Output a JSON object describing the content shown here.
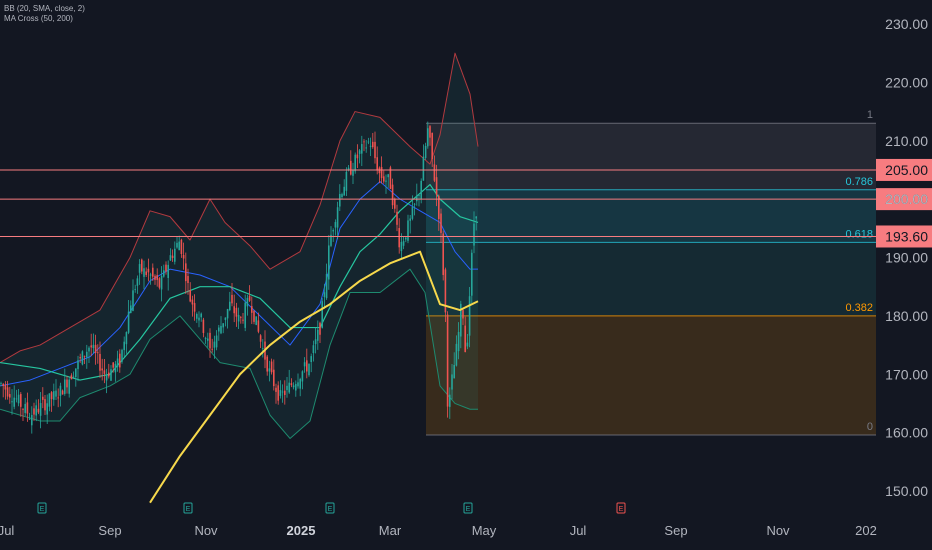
{
  "legend": {
    "bb": "BB (20, SMA, close, 2)",
    "ma": "MA Cross (50, 200)"
  },
  "chart_data": {
    "type": "candlestick",
    "y_axis": {
      "ticks": [
        230,
        220,
        210,
        200,
        190,
        180,
        170,
        160,
        150
      ],
      "tick_labels": [
        "230.00",
        "220.00",
        "210.00",
        "200.00",
        "190.00",
        "180.00",
        "170.00",
        "160.00",
        "150.00"
      ],
      "ylim": [
        147,
        233
      ]
    },
    "x_axis": {
      "labels": [
        "Jul",
        "Sep",
        "Nov",
        "2025",
        "Mar",
        "May",
        "Jul",
        "Sep",
        "Nov",
        "202"
      ],
      "bold_label": "2025"
    },
    "price_lines": [
      {
        "value": 205.0,
        "label": "205.00",
        "color": "#f77c80"
      },
      {
        "value": 200.0,
        "label": "200.00",
        "color": "#f77c80"
      },
      {
        "value": 193.6,
        "label": "193.60",
        "color": "#f77c80"
      }
    ],
    "fib_levels": [
      {
        "ratio": "1",
        "value": 213.0,
        "color": "#787b86"
      },
      {
        "ratio": "0.786",
        "value": 201.6,
        "color": "#26c6da"
      },
      {
        "ratio": "0.618",
        "value": 192.6,
        "color": "#26c6da"
      },
      {
        "ratio": "0.382",
        "value": 180.0,
        "color": "#ff9800"
      },
      {
        "ratio": "0",
        "value": 159.6,
        "color": "#787b86"
      }
    ],
    "earnings_markers": [
      "E",
      "E",
      "E",
      "E",
      "E"
    ],
    "colors": {
      "up": "#26a69a",
      "down": "#ef5350",
      "ma200": "#f7d94c",
      "ma50": "#26c6a0",
      "bb": "#ef5350",
      "bb_basis": "#2962ff"
    },
    "series_desc": [
      {
        "name": "price",
        "points": [
          [
            0,
            168.5
          ],
          [
            15,
            166
          ],
          [
            30,
            163
          ],
          [
            45,
            165
          ],
          [
            60,
            167
          ],
          [
            75,
            171
          ],
          [
            90,
            175
          ],
          [
            105,
            170
          ],
          [
            120,
            172
          ],
          [
            130,
            182
          ],
          [
            140,
            188
          ],
          [
            150,
            187
          ],
          [
            160,
            185
          ],
          [
            170,
            190
          ],
          [
            180,
            193
          ],
          [
            190,
            183
          ],
          [
            200,
            180
          ],
          [
            210,
            174
          ],
          [
            220,
            178
          ],
          [
            230,
            182
          ],
          [
            240,
            179
          ],
          [
            250,
            183
          ],
          [
            260,
            176
          ],
          [
            270,
            170
          ],
          [
            280,
            166
          ],
          [
            290,
            168
          ],
          [
            300,
            170
          ],
          [
            310,
            172
          ],
          [
            320,
            178
          ],
          [
            330,
            193
          ],
          [
            340,
            201
          ],
          [
            350,
            205
          ],
          [
            360,
            208
          ],
          [
            370,
            210
          ],
          [
            380,
            204
          ],
          [
            390,
            203
          ],
          [
            400,
            192
          ],
          [
            410,
            196
          ],
          [
            420,
            202
          ],
          [
            428,
            212
          ],
          [
            435,
            203
          ],
          [
            440,
            196
          ],
          [
            445,
            183
          ],
          [
            448,
            163
          ],
          [
            452,
            169
          ],
          [
            458,
            176
          ],
          [
            462,
            183
          ],
          [
            466,
            172
          ],
          [
            470,
            185
          ],
          [
            474,
            196
          ],
          [
            478,
            200
          ]
        ]
      },
      {
        "name": "MA200",
        "points": [
          [
            150,
            148
          ],
          [
            180,
            156
          ],
          [
            210,
            163
          ],
          [
            240,
            170
          ],
          [
            270,
            175
          ],
          [
            300,
            179
          ],
          [
            330,
            182
          ],
          [
            360,
            186
          ],
          [
            390,
            189
          ],
          [
            420,
            191
          ],
          [
            440,
            182
          ],
          [
            460,
            181
          ],
          [
            478,
            182.5
          ]
        ]
      },
      {
        "name": "MA50",
        "points": [
          [
            0,
            172
          ],
          [
            40,
            171
          ],
          [
            80,
            169
          ],
          [
            110,
            170
          ],
          [
            140,
            176
          ],
          [
            170,
            183
          ],
          [
            200,
            185
          ],
          [
            230,
            185
          ],
          [
            260,
            183
          ],
          [
            290,
            178
          ],
          [
            320,
            178
          ],
          [
            340,
            185
          ],
          [
            360,
            191
          ],
          [
            380,
            194
          ],
          [
            400,
            198
          ],
          [
            420,
            201
          ],
          [
            430,
            202.5
          ],
          [
            440,
            200
          ],
          [
            460,
            197
          ],
          [
            478,
            196
          ]
        ]
      },
      {
        "name": "BB upper",
        "points": [
          [
            0,
            172
          ],
          [
            20,
            174
          ],
          [
            40,
            175
          ],
          [
            70,
            178
          ],
          [
            100,
            181
          ],
          [
            130,
            190
          ],
          [
            150,
            198
          ],
          [
            170,
            197
          ],
          [
            190,
            193
          ],
          [
            210,
            200
          ],
          [
            225,
            196
          ],
          [
            250,
            192
          ],
          [
            270,
            188
          ],
          [
            300,
            191
          ],
          [
            320,
            199
          ],
          [
            340,
            210
          ],
          [
            355,
            215
          ],
          [
            380,
            214
          ],
          [
            410,
            209
          ],
          [
            430,
            206
          ],
          [
            440,
            211
          ],
          [
            455,
            225
          ],
          [
            470,
            218
          ],
          [
            478,
            209
          ]
        ]
      },
      {
        "name": "BB lower",
        "points": [
          [
            0,
            164
          ],
          [
            20,
            163
          ],
          [
            40,
            162
          ],
          [
            60,
            162
          ],
          [
            80,
            166
          ],
          [
            110,
            168
          ],
          [
            130,
            170
          ],
          [
            150,
            176
          ],
          [
            180,
            180
          ],
          [
            200,
            176
          ],
          [
            220,
            172
          ],
          [
            250,
            171
          ],
          [
            270,
            163
          ],
          [
            290,
            159
          ],
          [
            310,
            162
          ],
          [
            330,
            175
          ],
          [
            350,
            184
          ],
          [
            380,
            184
          ],
          [
            410,
            188
          ],
          [
            425,
            184
          ],
          [
            440,
            168
          ],
          [
            455,
            165
          ],
          [
            470,
            164
          ],
          [
            478,
            164
          ]
        ]
      },
      {
        "name": "BB basis",
        "points": [
          [
            0,
            168
          ],
          [
            30,
            169
          ],
          [
            60,
            171
          ],
          [
            90,
            173
          ],
          [
            120,
            178
          ],
          [
            150,
            186
          ],
          [
            170,
            188
          ],
          [
            200,
            187
          ],
          [
            230,
            185
          ],
          [
            260,
            180
          ],
          [
            290,
            175
          ],
          [
            320,
            182
          ],
          [
            340,
            195
          ],
          [
            360,
            200
          ],
          [
            380,
            203
          ],
          [
            400,
            200
          ],
          [
            420,
            198
          ],
          [
            440,
            196
          ],
          [
            455,
            191
          ],
          [
            470,
            188
          ],
          [
            478,
            188
          ]
        ]
      }
    ]
  }
}
